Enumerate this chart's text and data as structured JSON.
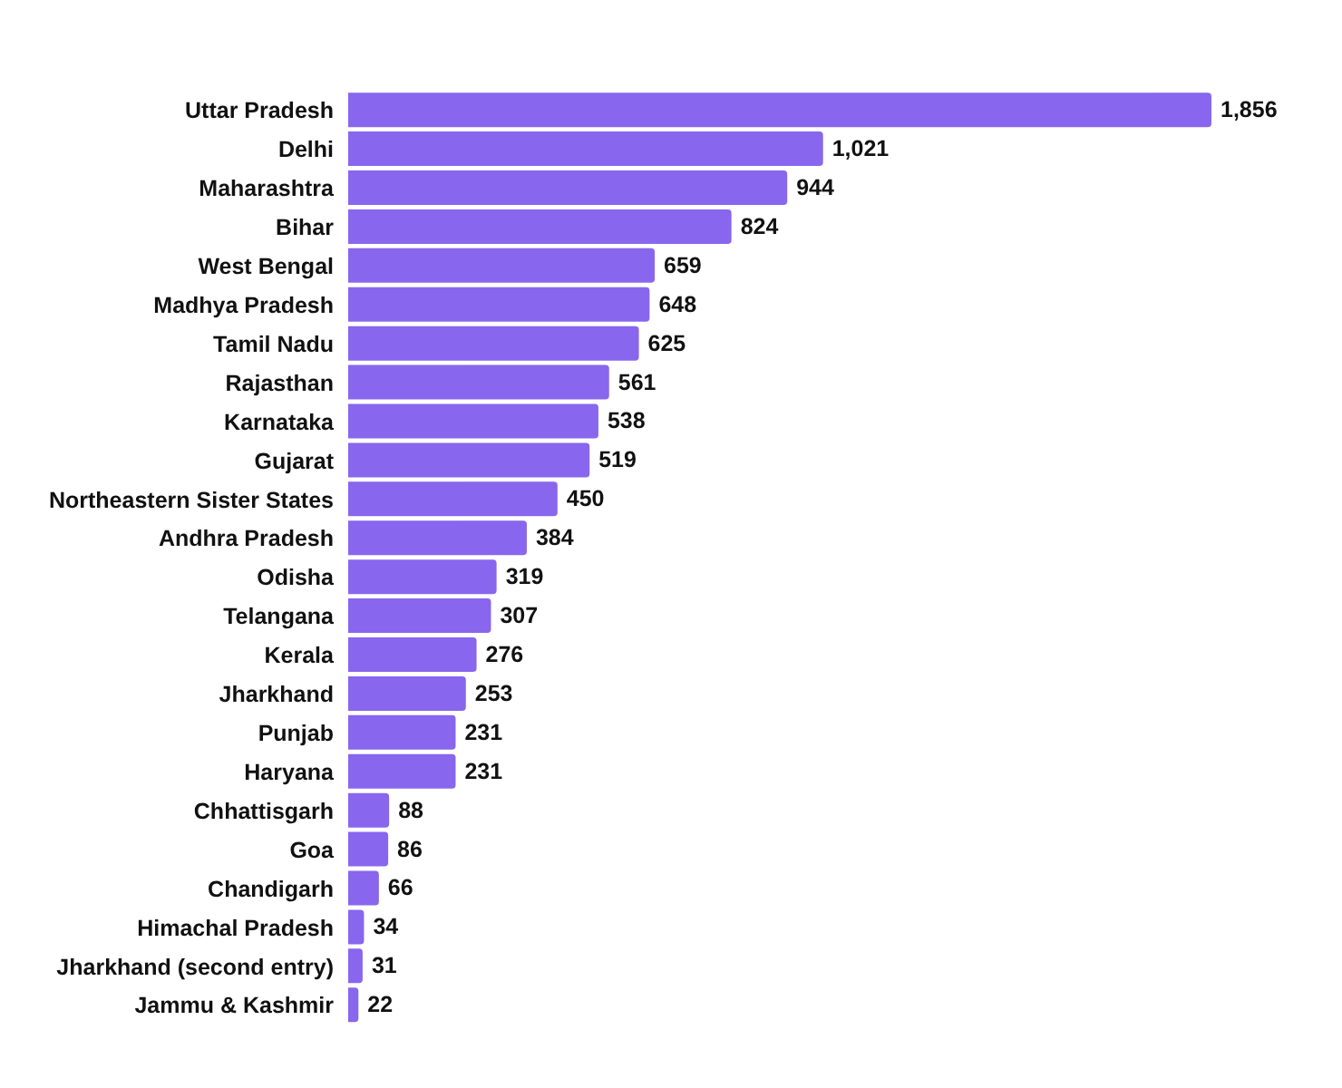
{
  "chart_data": {
    "type": "bar",
    "orientation": "horizontal",
    "categories": [
      "Uttar Pradesh",
      "Delhi",
      "Maharashtra",
      "Bihar",
      "West Bengal",
      "Madhya Pradesh",
      "Tamil Nadu",
      "Rajasthan",
      "Karnataka",
      "Gujarat",
      "Northeastern Sister States",
      "Andhra Pradesh",
      "Odisha",
      "Telangana",
      "Kerala",
      "Jharkhand",
      "Punjab",
      "Haryana",
      "Chhattisgarh",
      "Goa",
      "Chandigarh",
      "Himachal Pradesh",
      "Jharkhand (second entry)",
      "Jammu & Kashmir"
    ],
    "values": [
      1856,
      1021,
      944,
      824,
      659,
      648,
      625,
      561,
      538,
      519,
      450,
      384,
      319,
      307,
      276,
      253,
      231,
      231,
      88,
      86,
      66,
      34,
      31,
      22
    ],
    "value_labels": [
      "1,856",
      "1,021",
      "944",
      "824",
      "659",
      "648",
      "625",
      "561",
      "538",
      "519",
      "450",
      "384",
      "319",
      "307",
      "276",
      "253",
      "231",
      "231",
      "88",
      "86",
      "66",
      "34",
      "31",
      "22"
    ],
    "color": "#8866ee"
  }
}
